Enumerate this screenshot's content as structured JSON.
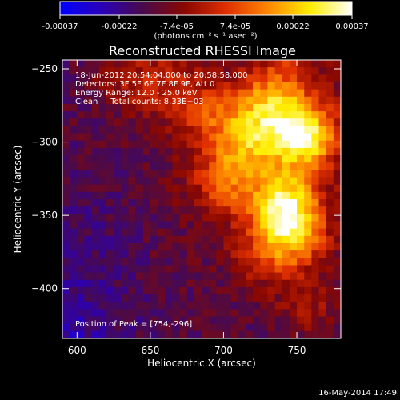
{
  "colorbar": {
    "tick_labels": [
      "-0.00037",
      "-0.00022",
      "-7.4e-05",
      "7.4e-05",
      "0.00022",
      "0.00037"
    ],
    "tick_values": [
      -0.00037,
      -0.00022,
      -7.4e-05,
      7.4e-05,
      0.00022,
      0.00037
    ],
    "range": [
      -0.00037,
      0.00037
    ],
    "unit_label": "(photons cm⁻² s⁻¹ asec⁻²)",
    "colors": [
      "#0000ff",
      "#2a00b8",
      "#4a0a4a",
      "#8a0800",
      "#e03000",
      "#ff8800",
      "#ffee00",
      "#ffffff"
    ]
  },
  "chart_data": {
    "type": "heatmap",
    "title": "Reconstructed RHESSI Image",
    "xlabel": "Heliocentric X (arcsec)",
    "ylabel": "Heliocentric Y (arcsec)",
    "xlim": [
      590,
      780
    ],
    "ylim": [
      -434,
      -244
    ],
    "x_ticks": [
      600,
      650,
      700,
      750
    ],
    "x_tick_labels": [
      "600",
      "650",
      "700",
      "750"
    ],
    "y_ticks": [
      -250,
      -300,
      -350,
      -400
    ],
    "y_tick_labels": [
      "−250",
      "−300",
      "−350",
      "−400"
    ],
    "info_lines": [
      "18-Jun-2012 20:54:04.000 to 20:58:58.000",
      "Detectors: 3F 5F 6F 7F 8F 9F, Att 0",
      "Energy Range: 12.0 - 25.0 keV",
      "Clean     Total counts: 8.33E+03"
    ],
    "peak_label": "Position of Peak = [754,-296]",
    "peak": [
      754,
      -296
    ],
    "bright_sources": [
      {
        "x": 754,
        "y": -296,
        "amp": 1.0
      },
      {
        "x": 728,
        "y": -278,
        "amp": 0.55
      },
      {
        "x": 714,
        "y": -302,
        "amp": 0.5
      },
      {
        "x": 740,
        "y": -340,
        "amp": 0.75
      },
      {
        "x": 748,
        "y": -362,
        "amp": 0.75
      },
      {
        "x": 700,
        "y": -328,
        "amp": 0.45
      },
      {
        "x": 690,
        "y": -280,
        "amp": 0.35
      },
      {
        "x": 660,
        "y": -262,
        "amp": 0.3
      },
      {
        "x": 632,
        "y": -256,
        "amp": 0.22
      },
      {
        "x": 726,
        "y": -378,
        "amp": 0.3
      },
      {
        "x": 758,
        "y": -412,
        "amp": 0.25
      },
      {
        "x": 742,
        "y": -255,
        "amp": 0.3
      }
    ],
    "grid": false
  },
  "footer": {
    "timestamp": "16-May-2014 17:49"
  }
}
